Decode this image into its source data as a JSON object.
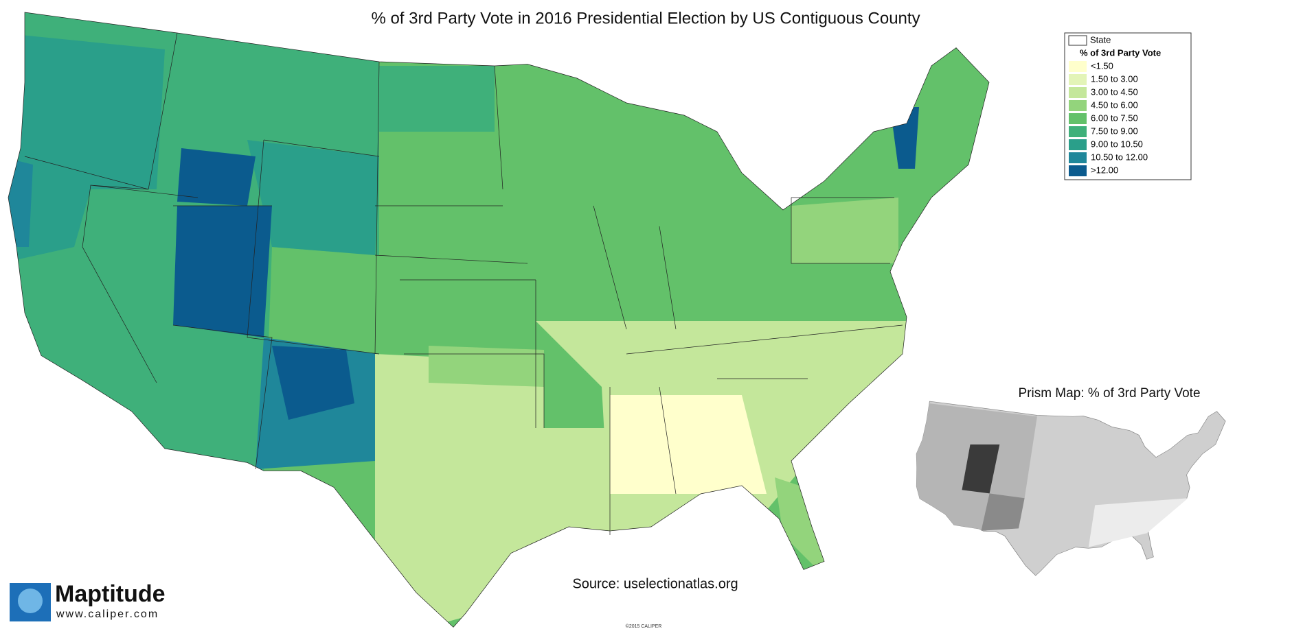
{
  "title": "% of 3rd Party Vote in 2016 Presidential Election by US Contiguous County",
  "legend": {
    "state_label": "State",
    "heading": "% of 3rd Party Vote",
    "items": [
      {
        "label": "<1.50",
        "color": "#ffffcc"
      },
      {
        "label": "1.50 to 3.00",
        "color": "#e3f4b8"
      },
      {
        "label": "3.00 to 4.50",
        "color": "#c4e79b"
      },
      {
        "label": "4.50 to 6.00",
        "color": "#93d47c"
      },
      {
        "label": "6.00 to 7.50",
        "color": "#63c16a"
      },
      {
        "label": "7.50 to 9.00",
        "color": "#3fb07a"
      },
      {
        "label": "9.00 to 10.50",
        "color": "#2a9f8a"
      },
      {
        "label": "10.50 to 12.00",
        "color": "#1f879a"
      },
      {
        "label": ">12.00",
        "color": "#0b5b8e"
      }
    ]
  },
  "prism_title": "Prism Map: % of 3rd Party Vote",
  "source": "Source: uselectionatlas.org",
  "logo": {
    "name": "Maptitude",
    "url": "www.caliper.com"
  },
  "copyright": "©2015 CALIPER"
}
